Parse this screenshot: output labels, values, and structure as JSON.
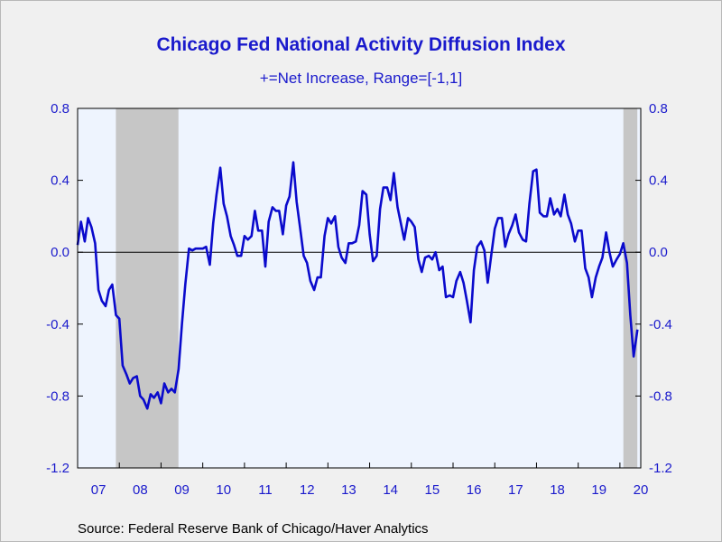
{
  "header": {
    "title": "Chicago Fed National Activity Diffusion Index",
    "subtitle": "+=Net Increase, Range=[-1,1]"
  },
  "footer": {
    "source": "Source:  Federal Reserve Bank of Chicago/Haver Analytics"
  },
  "colors": {
    "line": "#0a0acc",
    "plot_bg": "#eef4fe",
    "recession": "#c6c6c6",
    "text": "#1a1acc"
  },
  "chart_data": {
    "type": "line",
    "title": "Chicago Fed National Activity Diffusion Index",
    "subtitle": "+=Net Increase, Range=[-1,1]",
    "xlabel": "",
    "ylabel": "",
    "ylim": [
      -1.2,
      0.8
    ],
    "yticks": [
      0.8,
      0.4,
      0.0,
      -0.4,
      -0.8,
      -1.2
    ],
    "ytick_labels": [
      "0.8",
      "0.4",
      "0.0",
      "-0.4",
      "-0.8",
      "-1.2"
    ],
    "xlim": [
      2007.0,
      2020.5
    ],
    "xtick_labels": [
      "07",
      "08",
      "09",
      "10",
      "11",
      "12",
      "13",
      "14",
      "15",
      "16",
      "17",
      "18",
      "19",
      "20"
    ],
    "zero_line": true,
    "grid": false,
    "legend": "none",
    "recessions": [
      [
        2007.917,
        2009.417
      ],
      [
        2020.083,
        2020.417
      ]
    ],
    "series": [
      {
        "points": [
          [
            2007.0,
            0.04
          ],
          [
            2007.08,
            0.17
          ],
          [
            2007.17,
            0.06
          ],
          [
            2007.25,
            0.19
          ],
          [
            2007.33,
            0.14
          ],
          [
            2007.42,
            0.05
          ],
          [
            2007.5,
            -0.21
          ],
          [
            2007.58,
            -0.27
          ],
          [
            2007.67,
            -0.3
          ],
          [
            2007.75,
            -0.21
          ],
          [
            2007.83,
            -0.18
          ],
          [
            2007.92,
            -0.35
          ],
          [
            2008.0,
            -0.37
          ],
          [
            2008.08,
            -0.63
          ],
          [
            2008.17,
            -0.68
          ],
          [
            2008.25,
            -0.73
          ],
          [
            2008.33,
            -0.7
          ],
          [
            2008.42,
            -0.69
          ],
          [
            2008.5,
            -0.8
          ],
          [
            2008.58,
            -0.82
          ],
          [
            2008.67,
            -0.87
          ],
          [
            2008.75,
            -0.79
          ],
          [
            2008.83,
            -0.81
          ],
          [
            2008.92,
            -0.78
          ],
          [
            2009.0,
            -0.84
          ],
          [
            2009.08,
            -0.73
          ],
          [
            2009.17,
            -0.78
          ],
          [
            2009.25,
            -0.76
          ],
          [
            2009.33,
            -0.78
          ],
          [
            2009.42,
            -0.65
          ],
          [
            2009.5,
            -0.4
          ],
          [
            2009.58,
            -0.18
          ],
          [
            2009.67,
            0.02
          ],
          [
            2009.75,
            0.01
          ],
          [
            2009.83,
            0.02
          ],
          [
            2009.92,
            0.02
          ],
          [
            2010.0,
            0.02
          ],
          [
            2010.08,
            0.03
          ],
          [
            2010.17,
            -0.07
          ],
          [
            2010.25,
            0.16
          ],
          [
            2010.33,
            0.32
          ],
          [
            2010.42,
            0.47
          ],
          [
            2010.5,
            0.27
          ],
          [
            2010.58,
            0.2
          ],
          [
            2010.67,
            0.09
          ],
          [
            2010.75,
            0.04
          ],
          [
            2010.83,
            -0.02
          ],
          [
            2010.92,
            -0.02
          ],
          [
            2011.0,
            0.09
          ],
          [
            2011.08,
            0.07
          ],
          [
            2011.17,
            0.09
          ],
          [
            2011.25,
            0.23
          ],
          [
            2011.33,
            0.12
          ],
          [
            2011.42,
            0.12
          ],
          [
            2011.5,
            -0.08
          ],
          [
            2011.58,
            0.17
          ],
          [
            2011.67,
            0.25
          ],
          [
            2011.75,
            0.23
          ],
          [
            2011.83,
            0.23
          ],
          [
            2011.92,
            0.1
          ],
          [
            2012.0,
            0.26
          ],
          [
            2012.08,
            0.31
          ],
          [
            2012.17,
            0.5
          ],
          [
            2012.25,
            0.28
          ],
          [
            2012.33,
            0.14
          ],
          [
            2012.42,
            -0.02
          ],
          [
            2012.5,
            -0.06
          ],
          [
            2012.58,
            -0.16
          ],
          [
            2012.67,
            -0.21
          ],
          [
            2012.75,
            -0.14
          ],
          [
            2012.83,
            -0.14
          ],
          [
            2012.92,
            0.09
          ],
          [
            2013.0,
            0.19
          ],
          [
            2013.08,
            0.16
          ],
          [
            2013.17,
            0.2
          ],
          [
            2013.25,
            0.03
          ],
          [
            2013.33,
            -0.03
          ],
          [
            2013.42,
            -0.06
          ],
          [
            2013.5,
            0.05
          ],
          [
            2013.58,
            0.05
          ],
          [
            2013.67,
            0.06
          ],
          [
            2013.75,
            0.15
          ],
          [
            2013.83,
            0.34
          ],
          [
            2013.92,
            0.32
          ],
          [
            2014.0,
            0.1
          ],
          [
            2014.08,
            -0.05
          ],
          [
            2014.17,
            -0.02
          ],
          [
            2014.25,
            0.24
          ],
          [
            2014.33,
            0.36
          ],
          [
            2014.42,
            0.36
          ],
          [
            2014.5,
            0.29
          ],
          [
            2014.58,
            0.44
          ],
          [
            2014.67,
            0.25
          ],
          [
            2014.75,
            0.16
          ],
          [
            2014.83,
            0.07
          ],
          [
            2014.92,
            0.19
          ],
          [
            2015.0,
            0.17
          ],
          [
            2015.08,
            0.14
          ],
          [
            2015.17,
            -0.04
          ],
          [
            2015.25,
            -0.11
          ],
          [
            2015.33,
            -0.03
          ],
          [
            2015.42,
            -0.02
          ],
          [
            2015.5,
            -0.04
          ],
          [
            2015.58,
            0.0
          ],
          [
            2015.67,
            -0.1
          ],
          [
            2015.75,
            -0.08
          ],
          [
            2015.83,
            -0.25
          ],
          [
            2015.92,
            -0.24
          ],
          [
            2016.0,
            -0.25
          ],
          [
            2016.08,
            -0.16
          ],
          [
            2016.17,
            -0.11
          ],
          [
            2016.25,
            -0.17
          ],
          [
            2016.33,
            -0.27
          ],
          [
            2016.42,
            -0.39
          ],
          [
            2016.5,
            -0.1
          ],
          [
            2016.58,
            0.03
          ],
          [
            2016.67,
            0.06
          ],
          [
            2016.75,
            0.01
          ],
          [
            2016.83,
            -0.17
          ],
          [
            2016.92,
            -0.01
          ],
          [
            2017.0,
            0.13
          ],
          [
            2017.08,
            0.19
          ],
          [
            2017.17,
            0.19
          ],
          [
            2017.25,
            0.03
          ],
          [
            2017.33,
            0.1
          ],
          [
            2017.42,
            0.15
          ],
          [
            2017.5,
            0.21
          ],
          [
            2017.58,
            0.11
          ],
          [
            2017.67,
            0.07
          ],
          [
            2017.75,
            0.06
          ],
          [
            2017.83,
            0.27
          ],
          [
            2017.92,
            0.45
          ],
          [
            2018.0,
            0.46
          ],
          [
            2018.08,
            0.22
          ],
          [
            2018.17,
            0.2
          ],
          [
            2018.25,
            0.2
          ],
          [
            2018.33,
            0.3
          ],
          [
            2018.42,
            0.21
          ],
          [
            2018.5,
            0.24
          ],
          [
            2018.58,
            0.2
          ],
          [
            2018.67,
            0.32
          ],
          [
            2018.75,
            0.21
          ],
          [
            2018.83,
            0.16
          ],
          [
            2018.92,
            0.06
          ],
          [
            2019.0,
            0.12
          ],
          [
            2019.08,
            0.12
          ],
          [
            2019.17,
            -0.09
          ],
          [
            2019.25,
            -0.14
          ],
          [
            2019.33,
            -0.25
          ],
          [
            2019.42,
            -0.14
          ],
          [
            2019.5,
            -0.08
          ],
          [
            2019.58,
            -0.03
          ],
          [
            2019.67,
            0.11
          ],
          [
            2019.75,
            0.0
          ],
          [
            2019.83,
            -0.08
          ],
          [
            2019.92,
            -0.04
          ],
          [
            2020.0,
            -0.01
          ],
          [
            2020.08,
            0.05
          ],
          [
            2020.17,
            -0.06
          ],
          [
            2020.25,
            -0.35
          ],
          [
            2020.33,
            -0.58
          ],
          [
            2020.42,
            -0.43
          ]
        ]
      }
    ]
  }
}
